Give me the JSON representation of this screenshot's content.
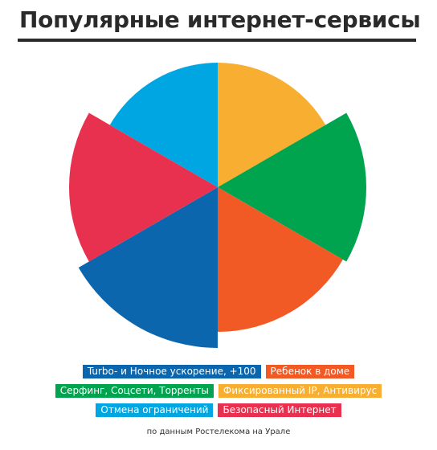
{
  "title": "Популярные интернет-сервисы",
  "source_note": "по данным Ростелекома на Урале",
  "chart_data": {
    "type": "polar-area",
    "slices": [
      {
        "label": "Фиксированный IP, Антивирус",
        "value": 155,
        "color": "#F7AE31"
      },
      {
        "label": "Серфинг, Соцсети, Торренты",
        "value": 185,
        "color": "#00A44F"
      },
      {
        "label": "Ребенок в доме",
        "value": 180,
        "color": "#F15A24"
      },
      {
        "label": "Turbo- и Ночное ускорение, +100",
        "value": 200,
        "color": "#0B66AE"
      },
      {
        "label": "Безопасный Интернет",
        "value": 185,
        "color": "#E8304F"
      },
      {
        "label": "Отмена ограничений",
        "value": 155,
        "color": "#00A6E2"
      }
    ],
    "legend_rows": [
      [
        {
          "label": "Turbo- и Ночное ускорение, +100",
          "color": "#0B66AE"
        },
        {
          "label": "Ребенок в доме",
          "color": "#F15A24"
        }
      ],
      [
        {
          "label": "Серфинг, Соцсети, Торренты",
          "color": "#00A44F"
        },
        {
          "label": "Фиксированный IP, Антивирус",
          "color": "#F7AE31"
        }
      ],
      [
        {
          "label": "Отмена ограничений",
          "color": "#00A6E2"
        },
        {
          "label": "Безопасный Интернет",
          "color": "#E8304F"
        }
      ]
    ]
  }
}
